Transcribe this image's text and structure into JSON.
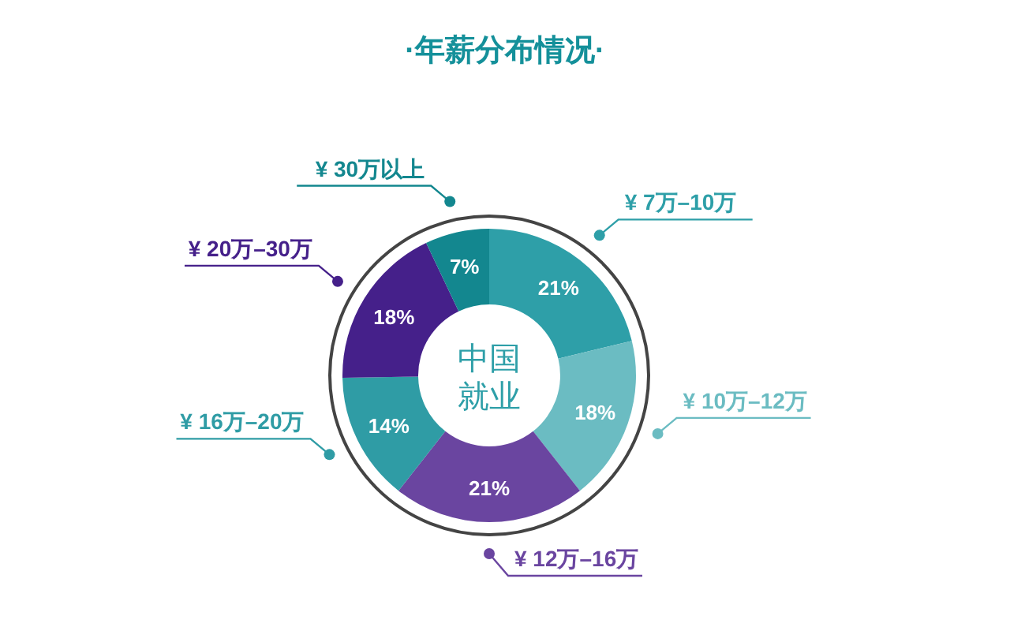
{
  "chart_data": {
    "type": "donut",
    "title": "·年薪分布情况·",
    "categories": [
      "¥ 7万–10万",
      "¥ 10万–12万",
      "¥ 12万–16万",
      "¥ 16万–20万",
      "¥ 20万–30万",
      "¥ 30万以上"
    ],
    "values": [
      21,
      18,
      21,
      14,
      18,
      7
    ],
    "value_labels": [
      "21%",
      "18%",
      "21%",
      "14%",
      "18%",
      "7%"
    ],
    "colors": [
      "#2e9fa8",
      "#6bbcc2",
      "#6a45a0",
      "#2f9ca5",
      "#45208a",
      "#13878f"
    ],
    "annotations": [
      "中国就业"
    ]
  }
}
